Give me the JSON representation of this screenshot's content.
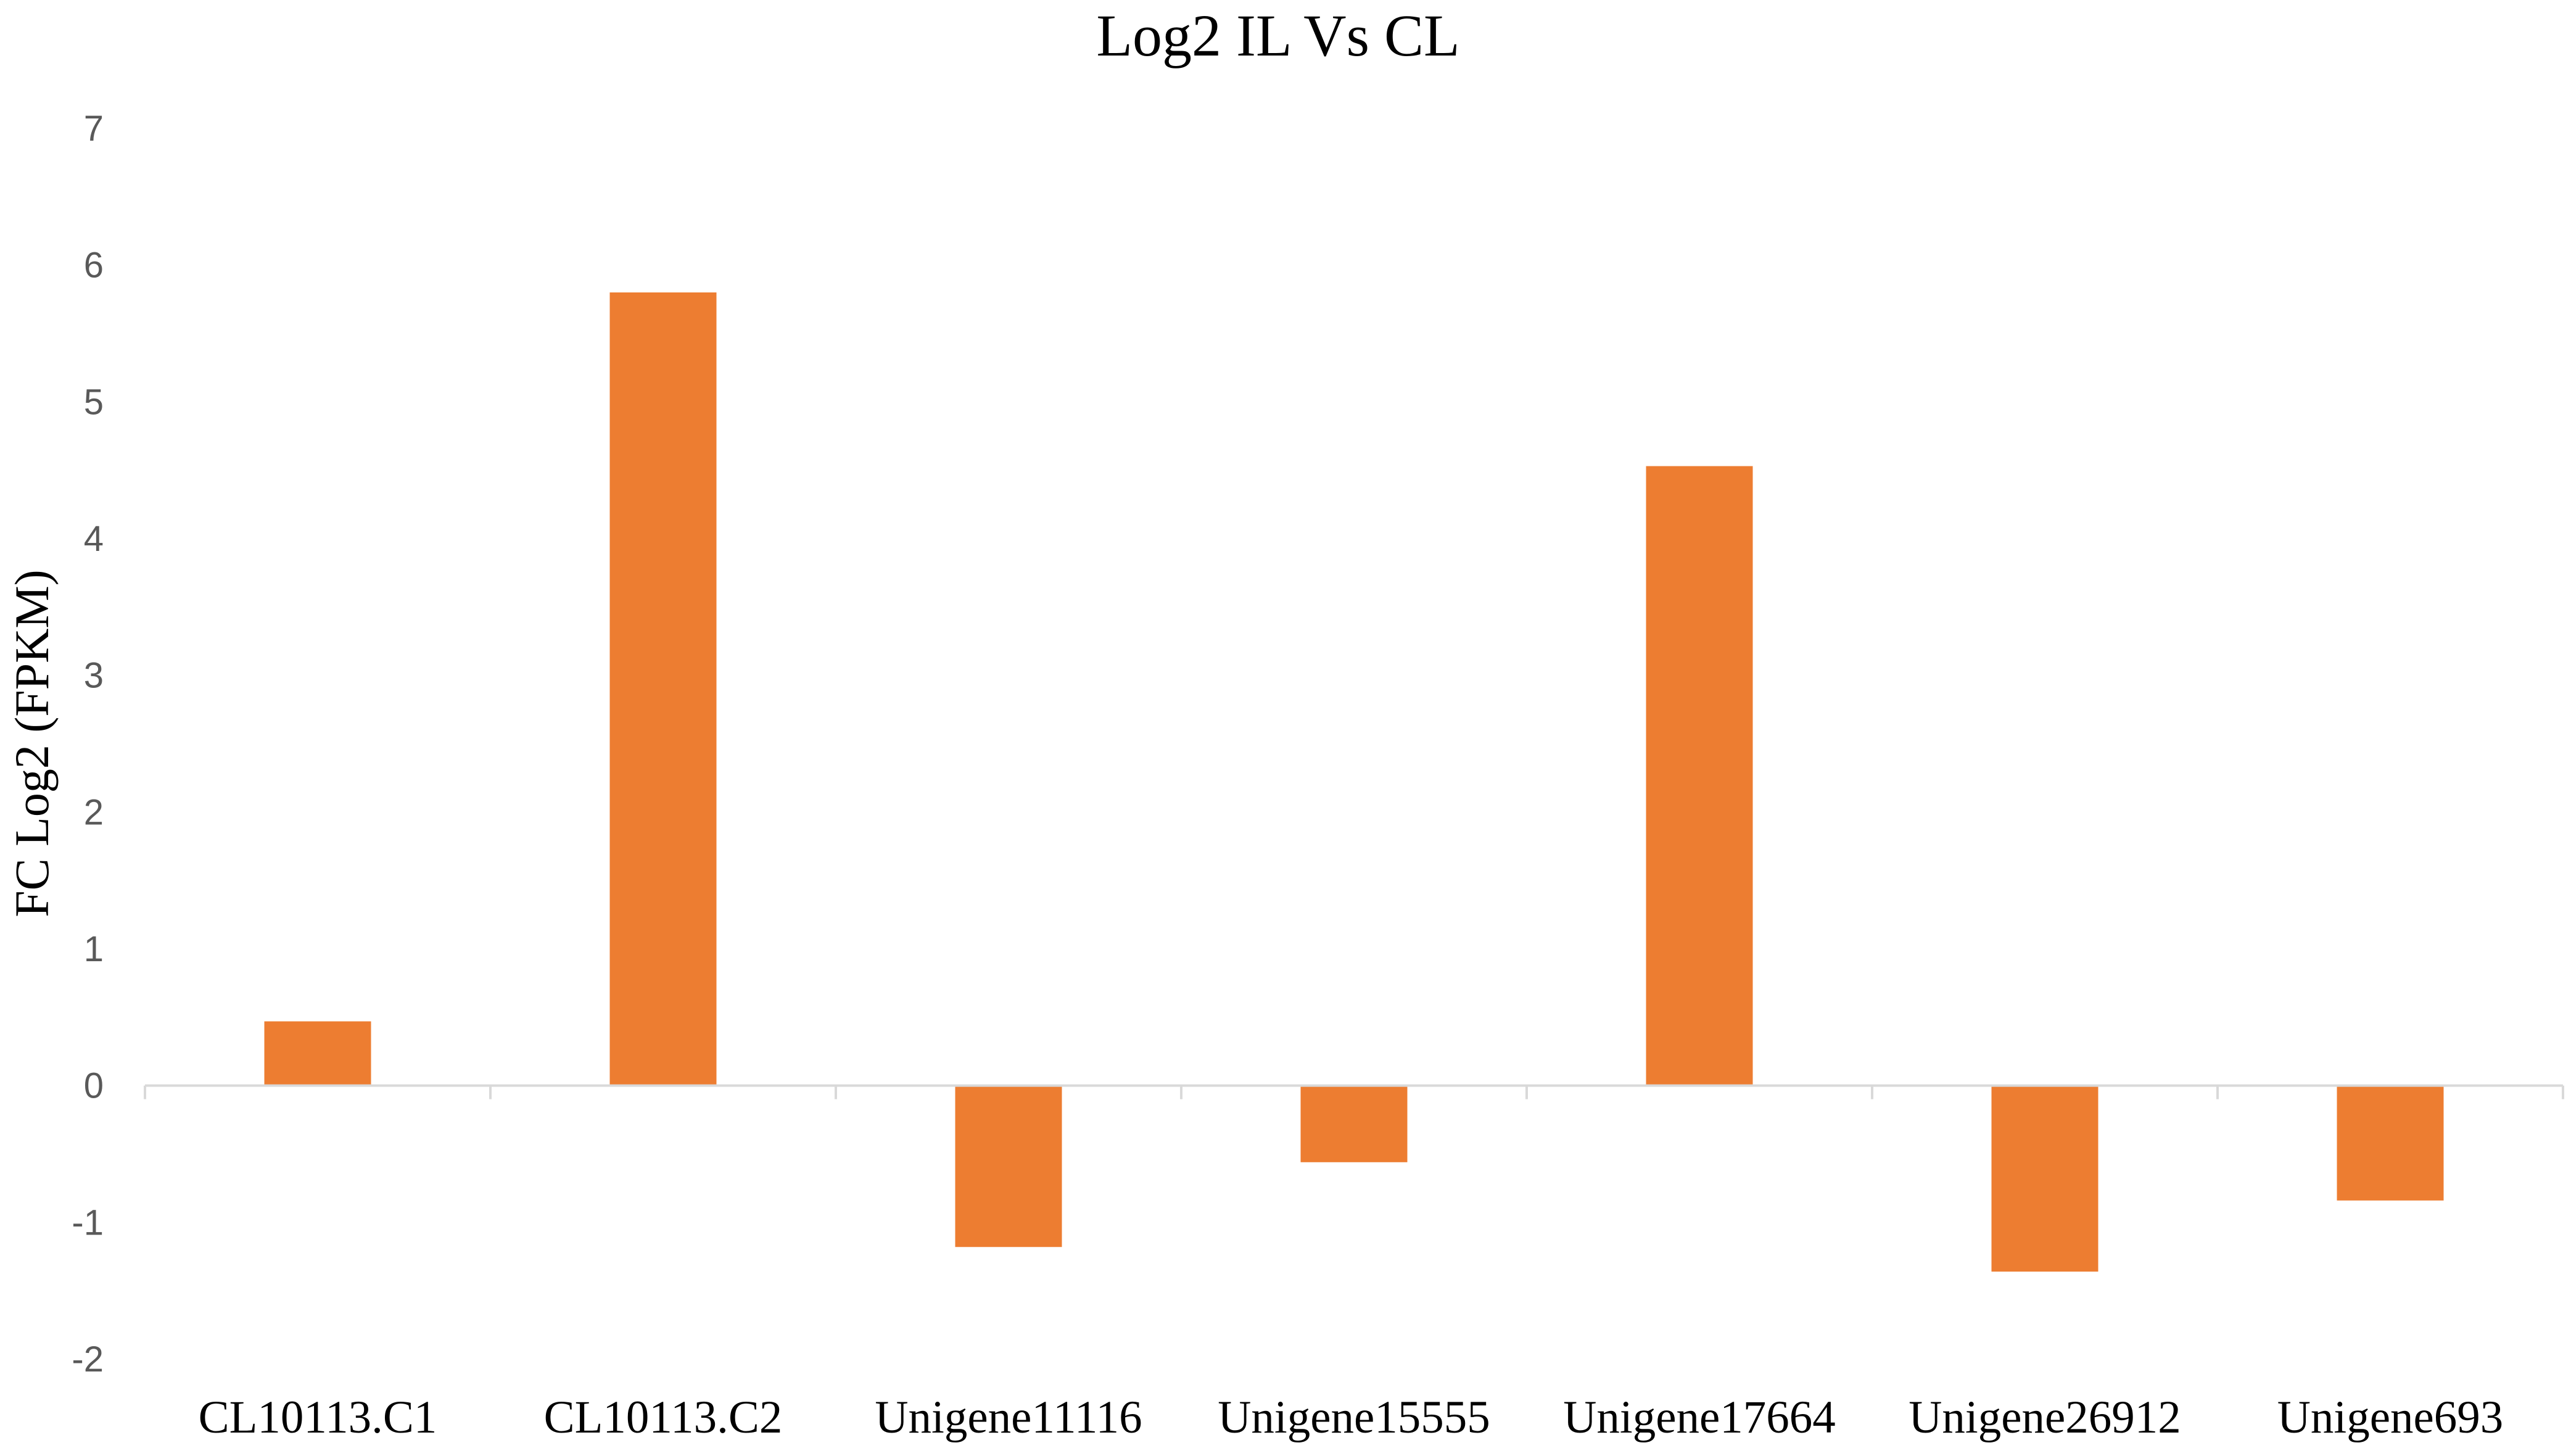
{
  "chart_data": {
    "type": "bar",
    "title": "Log2 IL Vs CL",
    "xlabel": "",
    "ylabel": "FC Log2 (FPKM)",
    "categories": [
      "CL10113.C1",
      "CL10113.C2",
      "Unigene11116",
      "Unigene15555",
      "Unigene17664",
      "Unigene26912",
      "Unigene693"
    ],
    "values": [
      0.47,
      5.8,
      -1.18,
      -0.56,
      4.53,
      -1.36,
      -0.84
    ],
    "ylim": [
      -2,
      7
    ],
    "yticks": [
      "-2",
      "-1",
      "0",
      "1",
      "2",
      "3",
      "4",
      "5",
      "6",
      "7"
    ],
    "grid": false,
    "legend": "none",
    "bar_color": "#ED7D31",
    "axis_color": "#D9D9D9"
  }
}
